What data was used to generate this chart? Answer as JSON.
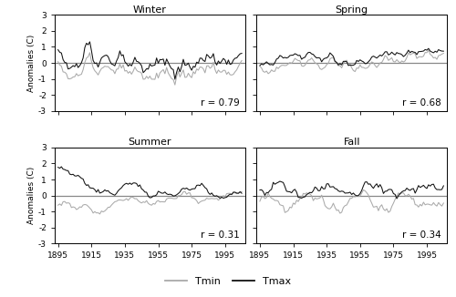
{
  "seasons": [
    "Winter",
    "Spring",
    "Summer",
    "Fall"
  ],
  "r_values": [
    "r = 0.79",
    "r = 0.68",
    "r = 0.31",
    "r = 0.34"
  ],
  "tmin_color": "#aaaaaa",
  "tmax_color": "#111111",
  "zero_line_color": "#888888",
  "ylim": [
    -3,
    3
  ],
  "yticks": [
    -3,
    -2,
    -1,
    0,
    1,
    2,
    3
  ],
  "xticks": [
    1895,
    1915,
    1935,
    1955,
    1975,
    1995
  ],
  "ylabel": "Anomalies (C)",
  "legend_labels": [
    "Tmin",
    "Tmax"
  ],
  "figsize": [
    5.0,
    3.26
  ],
  "dpi": 100
}
